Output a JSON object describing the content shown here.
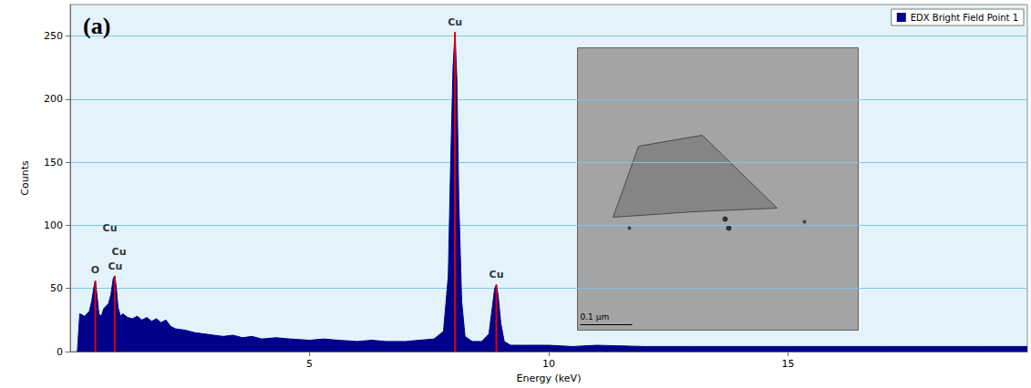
{
  "chart_data": {
    "type": "area",
    "title": "(a)",
    "x_label": "Energy (keV)",
    "y_label": "Counts",
    "xlim": [
      0,
      20
    ],
    "xticks": [
      5,
      10,
      15
    ],
    "ylim": [
      0,
      275
    ],
    "yticks": [
      0,
      50,
      100,
      150,
      200,
      250
    ],
    "grid": true,
    "legend": "top-right",
    "series": [
      {
        "name": "EDX Bright Field Point 1",
        "color": "#00008b",
        "x": [
          0.15,
          0.2,
          0.3,
          0.4,
          0.45,
          0.5,
          0.525,
          0.55,
          0.6,
          0.65,
          0.7,
          0.75,
          0.8,
          0.85,
          0.9,
          0.93,
          0.96,
          1.0,
          1.05,
          1.1,
          1.2,
          1.3,
          1.4,
          1.5,
          1.6,
          1.7,
          1.8,
          1.9,
          2.0,
          2.1,
          2.2,
          2.4,
          2.6,
          2.8,
          3.0,
          3.2,
          3.4,
          3.6,
          3.8,
          4.0,
          4.3,
          4.6,
          5.0,
          5.3,
          5.6,
          6.0,
          6.3,
          6.6,
          7.0,
          7.3,
          7.6,
          7.8,
          7.9,
          7.95,
          8.0,
          8.04,
          8.08,
          8.12,
          8.18,
          8.25,
          8.4,
          8.6,
          8.75,
          8.82,
          8.87,
          8.905,
          8.94,
          9.0,
          9.07,
          9.2,
          9.5,
          10,
          10.5,
          11,
          12,
          13,
          14,
          15,
          16,
          17,
          18,
          19,
          20
        ],
        "values": [
          0,
          30,
          28,
          32,
          40,
          52,
          56,
          48,
          30,
          28,
          34,
          36,
          38,
          45,
          58,
          60,
          52,
          35,
          28,
          30,
          27,
          26,
          28,
          25,
          27,
          24,
          26,
          23,
          25,
          20,
          18,
          17,
          15,
          14,
          13,
          12,
          13,
          11,
          12,
          10,
          11,
          10,
          9,
          10,
          9,
          8,
          9,
          8,
          8,
          9,
          10,
          16,
          60,
          150,
          225,
          253,
          215,
          120,
          40,
          12,
          8,
          8,
          14,
          35,
          50,
          53,
          45,
          22,
          8,
          5,
          5,
          5,
          4,
          5,
          4,
          4,
          4,
          4,
          4,
          4,
          4,
          4,
          4
        ]
      }
    ],
    "markers": {
      "color": "#e00000",
      "x": [
        0.525,
        0.93,
        8.04,
        8.905
      ],
      "values": [
        56,
        60,
        253,
        53
      ]
    },
    "annotations": [
      {
        "text": "O",
        "x": 0.52,
        "y": 60
      },
      {
        "text": "Cu",
        "x": 0.94,
        "y": 63
      },
      {
        "text": "Cu",
        "x": 1.02,
        "y": 74
      },
      {
        "text": "Cu",
        "x": 0.83,
        "y": 93
      },
      {
        "text": "Cu",
        "x": 8.04,
        "y": 256
      },
      {
        "text": "Cu",
        "x": 8.905,
        "y": 56
      }
    ],
    "inset": {
      "scale_bar_label": "0.1 µm"
    }
  }
}
